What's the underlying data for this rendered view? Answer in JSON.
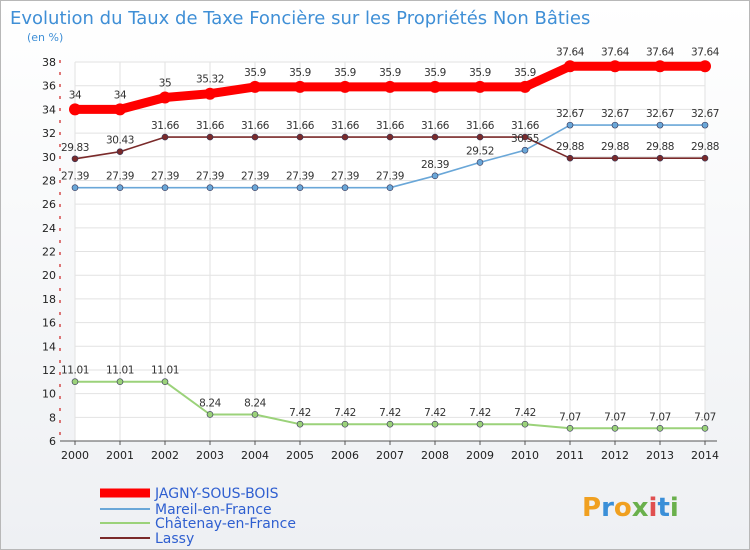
{
  "brand": {
    "letters": [
      "P",
      "r",
      "o",
      "x",
      "i",
      "t",
      "i"
    ],
    "colors": [
      "#f0a020",
      "#3a8fd8",
      "#f0a020",
      "#6ab04c",
      "#e05050",
      "#3a8fd8",
      "#6ab04c"
    ]
  },
  "chart_data": {
    "type": "line",
    "title": "Evolution du Taux de Taxe Foncière sur les Propriétés Non Bâties",
    "ylabel": "(en %)",
    "xlabel": "",
    "ylim": [
      6,
      38
    ],
    "yticks": [
      6,
      8,
      10,
      12,
      14,
      16,
      18,
      20,
      22,
      24,
      26,
      28,
      30,
      32,
      34,
      36,
      38
    ],
    "grid": true,
    "legend_position": "bottom-left",
    "categories": [
      "2000",
      "2001",
      "2002",
      "2003",
      "2004",
      "2005",
      "2006",
      "2007",
      "2008",
      "2009",
      "2010",
      "2011",
      "2012",
      "2013",
      "2014"
    ],
    "series": [
      {
        "name": "JAGNY-SOUS-BOIS",
        "color": "#ff0000",
        "values": [
          34,
          34,
          35,
          35.32,
          35.9,
          35.9,
          35.9,
          35.9,
          35.9,
          35.9,
          35.9,
          37.64,
          37.64,
          37.64,
          37.64
        ],
        "labels": [
          "34",
          "34",
          "35",
          "35.32",
          "35.9",
          "35.9",
          "35.9",
          "35.9",
          "35.9",
          "35.9",
          "35.9",
          "37.64",
          "37.64",
          "37.64",
          "37.64"
        ]
      },
      {
        "name": "Mareil-en-France",
        "color": "#6aa7d8",
        "values": [
          27.39,
          27.39,
          27.39,
          27.39,
          27.39,
          27.39,
          27.39,
          27.39,
          28.39,
          29.52,
          30.55,
          32.67,
          32.67,
          32.67,
          32.67
        ],
        "labels": [
          "27.39",
          "27.39",
          "27.39",
          "27.39",
          "27.39",
          "27.39",
          "27.39",
          "27.39",
          "28.39",
          "29.52",
          "30.55",
          "32.67",
          "32.67",
          "32.67",
          "32.67"
        ]
      },
      {
        "name": "Châtenay-en-France",
        "color": "#9bd27a",
        "values": [
          11.01,
          11.01,
          11.01,
          8.24,
          8.24,
          7.42,
          7.42,
          7.42,
          7.42,
          7.42,
          7.42,
          7.07,
          7.07,
          7.07,
          7.07
        ],
        "labels": [
          "11.01",
          "11.01",
          "11.01",
          "8.24",
          "8.24",
          "7.42",
          "7.42",
          "7.42",
          "7.42",
          "7.42",
          "7.42",
          "7.07",
          "7.07",
          "7.07",
          "7.07"
        ]
      },
      {
        "name": "Lassy",
        "color": "#7a2a2a",
        "values": [
          29.83,
          30.43,
          31.66,
          31.66,
          31.66,
          31.66,
          31.66,
          31.66,
          31.66,
          31.66,
          31.66,
          29.88,
          29.88,
          29.88,
          29.88
        ],
        "labels": [
          "29.83",
          "30.43",
          "31.66",
          "31.66",
          "31.66",
          "31.66",
          "31.66",
          "31.66",
          "31.66",
          "31.66",
          "31.66",
          "29.88",
          "29.88",
          "29.88",
          "29.88"
        ]
      }
    ]
  }
}
